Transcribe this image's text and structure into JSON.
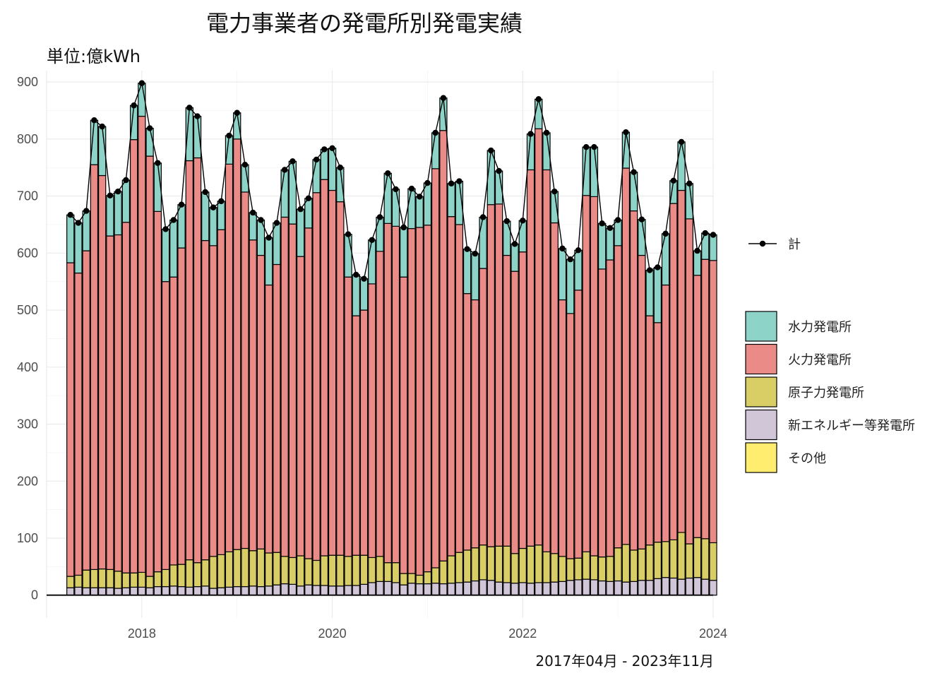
{
  "title": "電力事業者の発電所別発電実績",
  "subtitle": "単位:億kWh",
  "caption": "2017年04月 - 2023年11月",
  "chart_data": {
    "type": "bar",
    "stacked": true,
    "overlay_line": "計",
    "x_start_month": "2017-04",
    "x_end_month": "2023-11",
    "xlim": [
      "2017-01",
      "2024-01"
    ],
    "x_tick_labels": [
      "2018",
      "2020",
      "2022",
      "2024"
    ],
    "ylim": [
      -40,
      920
    ],
    "y_ticks": [
      0,
      100,
      200,
      300,
      400,
      500,
      600,
      700,
      800,
      900
    ],
    "grid": true,
    "legend_position": "right",
    "colors": {
      "水力発電所": "#8dd3c7",
      "火力発電所": "#eb8b87",
      "原子力発電所": "#d9cd66",
      "新エネルギー等発電所": "#d1c5d8",
      "その他": "#ffed6f"
    },
    "legend_line": [
      {
        "name": "計",
        "color": "#000000"
      }
    ],
    "legend_fill": [
      "水力発電所",
      "火力発電所",
      "原子力発電所",
      "新エネルギー等発電所",
      "その他"
    ],
    "series": [
      {
        "name": "新エネルギー等発電所",
        "values": [
          13,
          14,
          13,
          13,
          13,
          13,
          12,
          13,
          14,
          14,
          13,
          15,
          15,
          16,
          15,
          14,
          15,
          16,
          12,
          13,
          14,
          15,
          15,
          16,
          15,
          16,
          18,
          20,
          19,
          16,
          18,
          17,
          17,
          16,
          16,
          17,
          17,
          19,
          22,
          24,
          24,
          22,
          18,
          21,
          20,
          20,
          21,
          20,
          21,
          22,
          23,
          25,
          27,
          26,
          23,
          22,
          21,
          22,
          21,
          22,
          22,
          23,
          24,
          26,
          27,
          28,
          27,
          25,
          24,
          25,
          23,
          24,
          26,
          26,
          29,
          31,
          30,
          28,
          30,
          31,
          28,
          26
        ]
      },
      {
        "name": "原子力発電所",
        "values": [
          20,
          21,
          31,
          32,
          33,
          32,
          30,
          26,
          25,
          26,
          20,
          26,
          30,
          37,
          39,
          48,
          42,
          46,
          56,
          58,
          62,
          65,
          67,
          62,
          66,
          58,
          57,
          48,
          47,
          53,
          46,
          44,
          52,
          54,
          54,
          51,
          53,
          51,
          44,
          44,
          33,
          35,
          20,
          17,
          15,
          21,
          27,
          40,
          48,
          53,
          56,
          58,
          61,
          59,
          63,
          64,
          52,
          60,
          65,
          66,
          54,
          50,
          44,
          38,
          38,
          48,
          42,
          42,
          44,
          58,
          66,
          55,
          55,
          62,
          64,
          63,
          67,
          82,
          60,
          70,
          71,
          66
        ]
      },
      {
        "name": "火力発電所",
        "values": [
          550,
          530,
          560,
          710,
          690,
          585,
          590,
          615,
          760,
          800,
          737,
          632,
          505,
          505,
          555,
          700,
          710,
          560,
          545,
          570,
          680,
          720,
          625,
          545,
          515,
          470,
          505,
          595,
          585,
          525,
          580,
          645,
          660,
          640,
          620,
          490,
          420,
          430,
          480,
          535,
          595,
          590,
          520,
          605,
          610,
          608,
          700,
          755,
          595,
          575,
          450,
          435,
          485,
          600,
          600,
          510,
          495,
          520,
          660,
          730,
          670,
          580,
          450,
          430,
          470,
          625,
          630,
          505,
          520,
          530,
          660,
          595,
          515,
          402,
          385,
          450,
          590,
          600,
          570,
          460,
          490,
          495
        ]
      },
      {
        "name": "水力発電所",
        "values": [
          84,
          88,
          70,
          78,
          86,
          71,
          76,
          74,
          60,
          58,
          49,
          85,
          92,
          100,
          76,
          93,
          73,
          85,
          67,
          50,
          50,
          46,
          48,
          48,
          62,
          83,
          73,
          83,
          110,
          83,
          52,
          58,
          53,
          74,
          60,
          75,
          72,
          55,
          77,
          60,
          88,
          65,
          87,
          70,
          54,
          74,
          63,
          57,
          58,
          76,
          78,
          81,
          90,
          95,
          58,
          60,
          48,
          55,
          63,
          52,
          65,
          55,
          90,
          95,
          70,
          85,
          87,
          80,
          56,
          45,
          63,
          68,
          63,
          80,
          97,
          90,
          40,
          85,
          62,
          43,
          46,
          45
        ]
      },
      {
        "name": "その他",
        "values": [
          0,
          0,
          0,
          0,
          0,
          0,
          0,
          0,
          0,
          0,
          0,
          0,
          0,
          0,
          0,
          0,
          0,
          0,
          0,
          0,
          0,
          0,
          0,
          0,
          0,
          0,
          0,
          0,
          0,
          0,
          0,
          0,
          0,
          0,
          0,
          0,
          0,
          0,
          0,
          0,
          0,
          0,
          0,
          0,
          0,
          0,
          0,
          0,
          0,
          0,
          0,
          0,
          0,
          0,
          0,
          0,
          0,
          0,
          0,
          0,
          0,
          0,
          0,
          0,
          0,
          0,
          0,
          0,
          0,
          0,
          0,
          0,
          0,
          0,
          0,
          0,
          0,
          0,
          0,
          0,
          0,
          0
        ]
      }
    ]
  }
}
